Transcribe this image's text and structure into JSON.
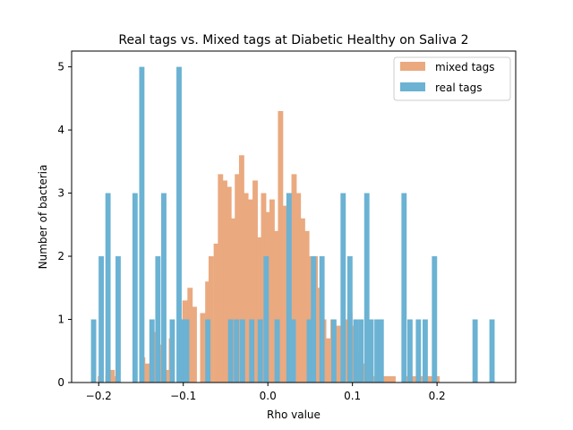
{
  "chart_data": {
    "type": "bar",
    "title": "Real tags vs. Mixed tags at Diabetic Healthy on Saliva 2",
    "xlabel": "Rho value",
    "ylabel": "Number of bacteria",
    "xlim": [
      -0.232,
      0.293
    ],
    "ylim": [
      0,
      5.25
    ],
    "xticks": [
      -0.2,
      -0.1,
      0.0,
      0.1,
      0.2
    ],
    "xtick_labels": [
      "−0.2",
      "−0.1",
      "0.0",
      "0.1",
      "0.2"
    ],
    "yticks": [
      0,
      1,
      2,
      3,
      4,
      5
    ],
    "ytick_labels": [
      "0",
      "1",
      "2",
      "3",
      "4",
      "5"
    ],
    "grid": false,
    "legend_position": "top-right",
    "series": [
      {
        "name": "mixed tags",
        "color": "#EAA97F",
        "bar_width": 0.0062,
        "x": [
          -0.198,
          -0.189,
          -0.184,
          -0.179,
          -0.148,
          -0.144,
          -0.139,
          -0.133,
          -0.129,
          -0.124,
          -0.119,
          -0.114,
          -0.103,
          -0.098,
          -0.092,
          -0.087,
          -0.077,
          -0.071,
          -0.067,
          -0.061,
          -0.056,
          -0.051,
          -0.046,
          -0.041,
          -0.036,
          -0.031,
          -0.026,
          -0.02,
          -0.015,
          -0.01,
          -0.005,
          0.0,
          0.005,
          0.01,
          0.015,
          0.021,
          0.025,
          0.031,
          0.036,
          0.041,
          0.046,
          0.051,
          0.056,
          0.061,
          0.066,
          0.071,
          0.077,
          0.082,
          0.087,
          0.092,
          0.097,
          0.102,
          0.107,
          0.112,
          0.118,
          0.123,
          0.128,
          0.133,
          0.138,
          0.143,
          0.148,
          0.164,
          0.169,
          0.174,
          0.184,
          0.19,
          0.195,
          0.2
        ],
        "values": [
          0.1,
          0.1,
          0.2,
          0.1,
          0.4,
          0.3,
          0.3,
          0.8,
          0.5,
          0.6,
          0.2,
          0.7,
          1.0,
          1.3,
          1.5,
          1.2,
          1.1,
          1.6,
          2.0,
          2.2,
          3.3,
          3.2,
          3.1,
          2.6,
          3.3,
          3.6,
          3.0,
          2.9,
          3.2,
          2.3,
          3.0,
          2.7,
          2.9,
          2.4,
          4.3,
          2.8,
          3.0,
          3.3,
          3.0,
          2.6,
          2.4,
          2.0,
          2.0,
          1.5,
          1.0,
          0.7,
          1.0,
          0.9,
          0.9,
          1.0,
          1.1,
          0.9,
          0.5,
          0.3,
          0.2,
          0.1,
          0.1,
          0.1,
          0.1,
          0.1,
          0.1,
          0.1,
          0.1,
          0.1,
          0.1,
          0.1,
          0.1,
          0.1
        ]
      },
      {
        "name": "real tags",
        "color": "#6BB2D3",
        "bar_width": 0.0062,
        "x": [
          -0.206,
          -0.197,
          -0.189,
          -0.177,
          -0.157,
          -0.149,
          -0.137,
          -0.13,
          -0.123,
          -0.113,
          -0.105,
          -0.101,
          -0.096,
          -0.071,
          -0.044,
          -0.037,
          -0.03,
          -0.019,
          -0.009,
          -0.002,
          0.011,
          0.025,
          0.03,
          0.049,
          0.054,
          0.064,
          0.078,
          0.089,
          0.097,
          0.104,
          0.11,
          0.117,
          0.122,
          0.129,
          0.134,
          0.161,
          0.168,
          0.178,
          0.186,
          0.197,
          0.245,
          0.265
        ],
        "values": [
          1,
          2,
          3,
          2,
          3,
          5,
          1,
          2,
          3,
          1,
          5,
          1,
          1,
          1,
          1,
          1,
          1,
          1,
          1,
          2,
          1,
          3,
          1,
          1,
          2,
          2,
          1,
          3,
          2,
          1,
          1,
          3,
          1,
          1,
          1,
          3,
          1,
          1,
          1,
          2,
          1,
          1
        ]
      }
    ]
  }
}
